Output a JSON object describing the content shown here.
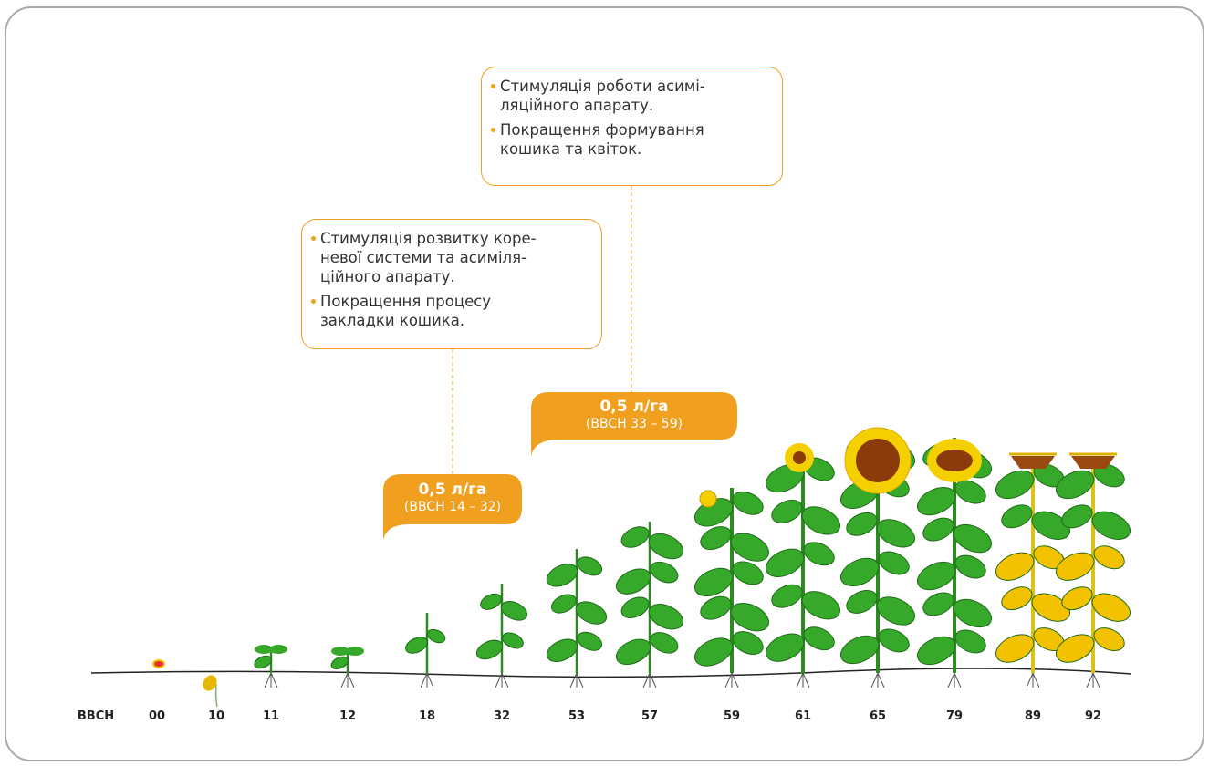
{
  "callouts": [
    {
      "items": [
        {
          "lines": [
            "Стимуляція розвитку коре-",
            "невої системи та асиміля-",
            "ційного апарату."
          ]
        },
        {
          "lines": [
            "Покращення процесу",
            "закладки кошика."
          ]
        }
      ]
    },
    {
      "items": [
        {
          "lines": [
            "Стимуляція роботи асимі-",
            "ляційного апарату."
          ]
        },
        {
          "lines": [
            "Покращення формування",
            "кошика та квіток."
          ]
        }
      ]
    }
  ],
  "badges": [
    {
      "dose": "0,5 л/га",
      "range": "(BBCH 14 – 32)"
    },
    {
      "dose": "0,5 л/га",
      "range": "(BBCH 33 – 59)"
    }
  ],
  "scale": {
    "label": "BBCH",
    "stages": [
      "00",
      "10",
      "11",
      "12",
      "18",
      "32",
      "53",
      "57",
      "59",
      "61",
      "65",
      "79",
      "89",
      "92"
    ]
  }
}
